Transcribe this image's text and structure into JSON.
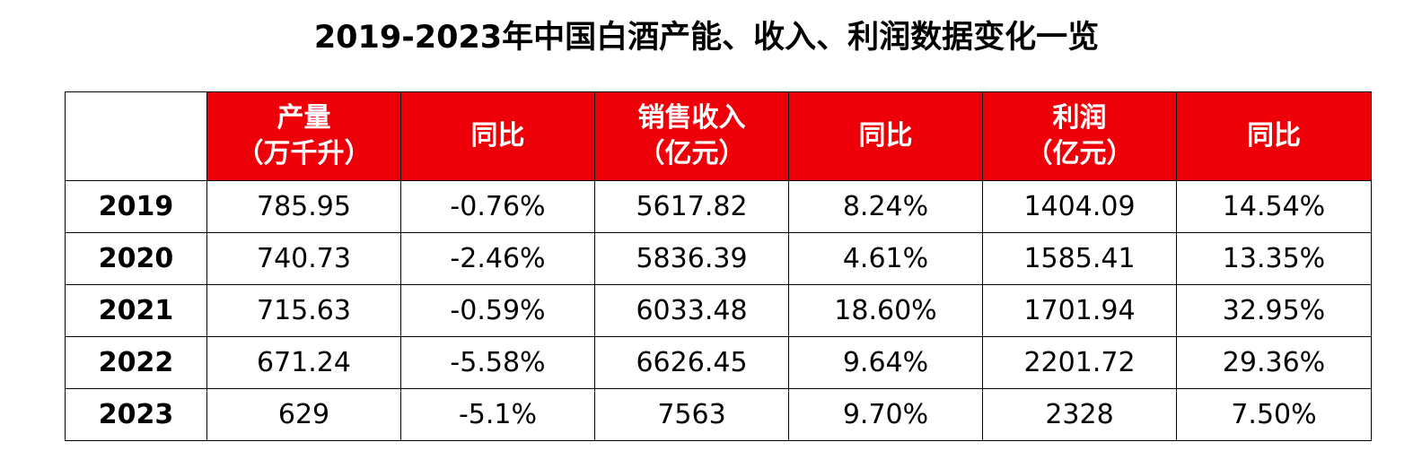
{
  "title": "2019-2023年中国白酒产能、收入、利润数据变化一览",
  "table": {
    "header": [
      [
        "产量",
        "（万千升）"
      ],
      [
        "同比"
      ],
      [
        "销售收入",
        "（亿元）"
      ],
      [
        "同比"
      ],
      [
        "利润",
        "（亿元）"
      ],
      [
        "同比"
      ]
    ],
    "rows": [
      [
        "2019",
        "785.95",
        "-0.76%",
        "5617.82",
        "8.24%",
        "1404.09",
        "14.54%"
      ],
      [
        "2020",
        "740.73",
        "-2.46%",
        "5836.39",
        "4.61%",
        "1585.41",
        "13.35%"
      ],
      [
        "2021",
        "715.63",
        "-0.59%",
        "6033.48",
        "18.60%",
        "1701.94",
        "32.95%"
      ],
      [
        "2022",
        "671.24",
        "-5.58%",
        "6626.45",
        "9.64%",
        "2201.72",
        "29.36%"
      ],
      [
        "2023",
        "629",
        "-5.1%",
        "7563",
        "9.70%",
        "2328",
        "7.50%"
      ]
    ]
  }
}
